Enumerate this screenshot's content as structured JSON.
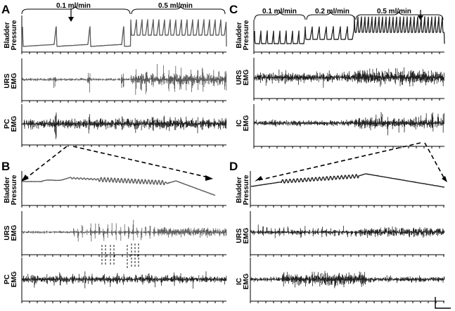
{
  "panels": {
    "A": {
      "label": "A",
      "rates": [
        "0.1 ml/min",
        "0.5 ml/min"
      ],
      "traces": [
        [
          "Bladder",
          "Pressure"
        ],
        [
          "URS",
          "EMG"
        ],
        [
          "PC",
          "EMG"
        ]
      ]
    },
    "B": {
      "label": "B",
      "traces": [
        [
          "Bladder",
          "Pressure"
        ],
        [
          "URS",
          "EMG"
        ],
        [
          "PC",
          "EMG"
        ]
      ]
    },
    "C": {
      "label": "C",
      "rates": [
        "0.1 ml/min",
        "0.2 ml/min",
        "0.5 ml/min"
      ],
      "traces": [
        [
          "Bladder",
          "Pressure"
        ],
        [
          "URS",
          "EMG"
        ],
        [
          "IC",
          "EMG"
        ]
      ]
    },
    "D": {
      "label": "D",
      "traces": [
        [
          "Bladder",
          "Pressure"
        ],
        [
          "URS",
          "EMG"
        ],
        [
          "IC",
          "EMG"
        ]
      ]
    }
  },
  "colors": {
    "trace": "#5a5a5a",
    "traceDark": "#222222",
    "axis": "#000000"
  },
  "icons": {
    "arrow": "down-arrow-icon",
    "zoom": "dashed-zoom-arrow-icon",
    "scale": "scale-bar-icon"
  }
}
